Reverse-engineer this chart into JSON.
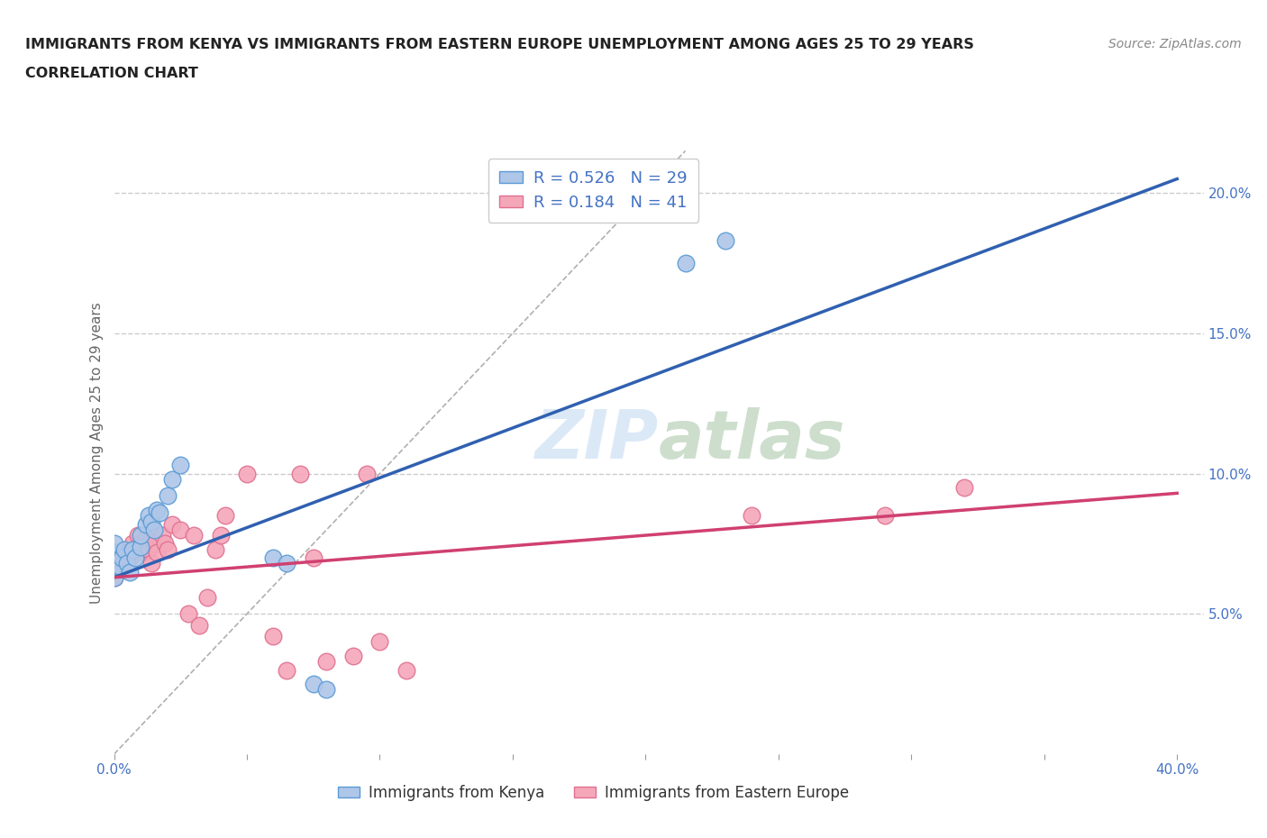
{
  "title_line1": "IMMIGRANTS FROM KENYA VS IMMIGRANTS FROM EASTERN EUROPE UNEMPLOYMENT AMONG AGES 25 TO 29 YEARS",
  "title_line2": "CORRELATION CHART",
  "source_text": "Source: ZipAtlas.com",
  "ylabel": "Unemployment Among Ages 25 to 29 years",
  "xlim": [
    0.0,
    0.41
  ],
  "ylim": [
    0.0,
    0.215
  ],
  "xtick_positions": [
    0.0,
    0.05,
    0.1,
    0.15,
    0.2,
    0.25,
    0.3,
    0.35,
    0.4
  ],
  "xtick_labels": [
    "0.0%",
    "",
    "",
    "",
    "",
    "",
    "",
    "",
    "40.0%"
  ],
  "ytick_positions": [
    0.05,
    0.1,
    0.15,
    0.2
  ],
  "ytick_labels": [
    "5.0%",
    "10.0%",
    "15.0%",
    "20.0%"
  ],
  "kenya_R": 0.526,
  "kenya_N": 29,
  "eastern_europe_R": 0.184,
  "eastern_europe_N": 41,
  "kenya_color": "#aec6e8",
  "eastern_europe_color": "#f4a7b9",
  "kenya_edge_color": "#5b9bd5",
  "eastern_europe_edge_color": "#e07090",
  "kenya_line_color": "#3060b0",
  "eastern_europe_line_color": "#d04070",
  "diagonal_color": "#b0b0b0",
  "background_color": "#ffffff",
  "kenya_x": [
    0.0,
    0.0,
    0.0,
    0.0,
    0.0,
    0.002,
    0.003,
    0.004,
    0.005,
    0.006,
    0.007,
    0.008,
    0.01,
    0.01,
    0.012,
    0.013,
    0.014,
    0.015,
    0.016,
    0.017,
    0.02,
    0.022,
    0.025,
    0.06,
    0.065,
    0.075,
    0.08,
    0.215,
    0.23
  ],
  "kenya_y": [
    0.063,
    0.067,
    0.07,
    0.072,
    0.075,
    0.067,
    0.07,
    0.073,
    0.068,
    0.065,
    0.073,
    0.07,
    0.074,
    0.078,
    0.082,
    0.085,
    0.083,
    0.08,
    0.087,
    0.086,
    0.092,
    0.098,
    0.103,
    0.07,
    0.068,
    0.025,
    0.023,
    0.175,
    0.183
  ],
  "eastern_europe_x": [
    0.0,
    0.0,
    0.0,
    0.003,
    0.004,
    0.006,
    0.007,
    0.008,
    0.009,
    0.01,
    0.011,
    0.012,
    0.013,
    0.014,
    0.015,
    0.016,
    0.018,
    0.019,
    0.02,
    0.022,
    0.025,
    0.028,
    0.03,
    0.032,
    0.035,
    0.038,
    0.04,
    0.042,
    0.05,
    0.06,
    0.065,
    0.07,
    0.075,
    0.08,
    0.09,
    0.095,
    0.1,
    0.11,
    0.24,
    0.29,
    0.32
  ],
  "eastern_europe_y": [
    0.063,
    0.068,
    0.072,
    0.067,
    0.072,
    0.07,
    0.075,
    0.073,
    0.078,
    0.075,
    0.072,
    0.077,
    0.073,
    0.068,
    0.075,
    0.072,
    0.078,
    0.075,
    0.073,
    0.082,
    0.08,
    0.05,
    0.078,
    0.046,
    0.056,
    0.073,
    0.078,
    0.085,
    0.1,
    0.042,
    0.03,
    0.1,
    0.07,
    0.033,
    0.035,
    0.1,
    0.04,
    0.03,
    0.085,
    0.085,
    0.095
  ],
  "kenya_line_x0": 0.0,
  "kenya_line_y0": 0.063,
  "kenya_line_x1": 0.4,
  "kenya_line_y1": 0.205,
  "ee_line_x0": 0.0,
  "ee_line_y0": 0.063,
  "ee_line_x1": 0.4,
  "ee_line_y1": 0.093
}
